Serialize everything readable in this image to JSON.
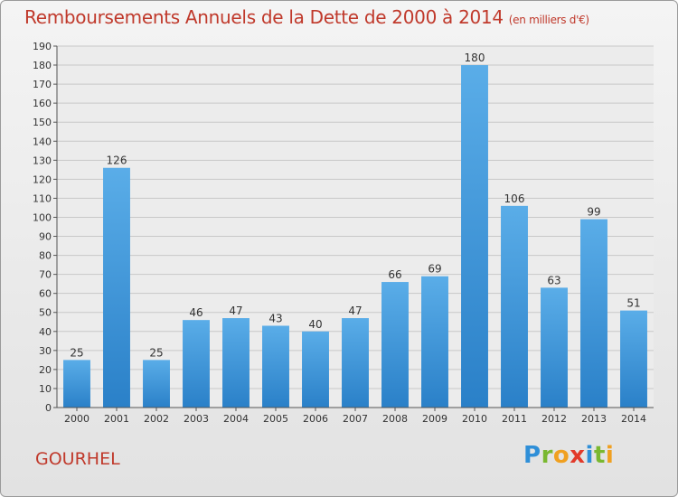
{
  "header": {
    "title": "Remboursements Annuels de la Dette de 2000 à 2014",
    "subtitle": "(en milliers d'€)"
  },
  "footer": {
    "commune": "GOURHEL",
    "logo_letters": [
      "P",
      "r",
      "o",
      "x",
      "i",
      "t",
      "i"
    ],
    "logo_colors": [
      "#2f8fd8",
      "#7ab830",
      "#f0a020",
      "#e23a2a",
      "#2f8fd8",
      "#7ab830",
      "#f0a020"
    ]
  },
  "colors": {
    "bar_light": "#5aade8",
    "bar_dark": "#2a80c8",
    "title": "#c0392b",
    "grid": "#c8c8c8"
  },
  "chart_data": {
    "type": "bar",
    "categories": [
      "2000",
      "2001",
      "2002",
      "2003",
      "2004",
      "2005",
      "2006",
      "2007",
      "2008",
      "2009",
      "2010",
      "2011",
      "2012",
      "2013",
      "2014"
    ],
    "values": [
      25,
      126,
      25,
      46,
      47,
      43,
      40,
      47,
      66,
      69,
      180,
      106,
      63,
      99,
      51
    ],
    "ylim": [
      0,
      190
    ],
    "yticks": [
      0,
      10,
      20,
      30,
      40,
      50,
      60,
      70,
      80,
      90,
      100,
      110,
      120,
      130,
      140,
      150,
      160,
      170,
      180,
      190
    ],
    "grid": true
  }
}
